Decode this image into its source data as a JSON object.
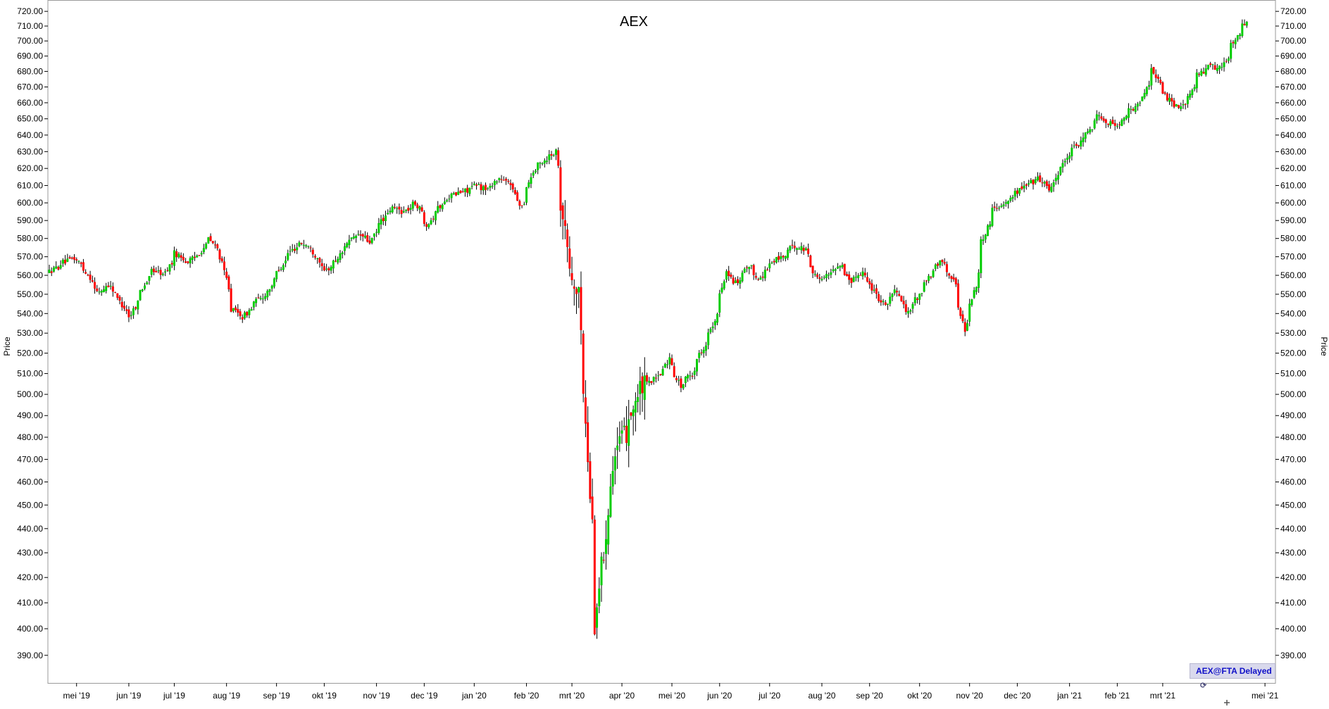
{
  "chart_data": {
    "type": "candlestick",
    "title": "AEX",
    "ylabel_left": "Price",
    "ylabel_right": "Price",
    "ylim": [
      385,
      722
    ],
    "y_scale": "log",
    "y_ticks": [
      "720.00",
      "710.00",
      "700.00",
      "690.00",
      "680.00",
      "670.00",
      "660.00",
      "650.00",
      "640.00",
      "630.00",
      "620.00",
      "610.00",
      "600.00",
      "590.00",
      "580.00",
      "570.00",
      "560.00",
      "550.00",
      "540.00",
      "530.00",
      "520.00",
      "510.00",
      "500.00",
      "490.00",
      "480.00",
      "470.00",
      "460.00",
      "450.00",
      "440.00",
      "430.00",
      "420.00",
      "410.00",
      "400.00",
      "390.00"
    ],
    "x_labels": [
      "mei '19",
      "jun '19",
      "jul '19",
      "aug '19",
      "sep '19",
      "okt '19",
      "nov '19",
      "dec '19",
      "jan '20",
      "feb '20",
      "mrt '20",
      "apr '20",
      "mei '20",
      "jun '20",
      "jul '20",
      "aug '20",
      "sep '20",
      "okt '20",
      "nov '20",
      "dec '20",
      "jan '21",
      "feb '21",
      "mrt '21",
      "mei '21"
    ],
    "colors": {
      "up": "#00cc00",
      "down": "#ff0000",
      "wick": "#000000",
      "axis": "#000000"
    },
    "close_series": [
      {
        "date": "2019-04-15",
        "close": 562
      },
      {
        "date": "2019-04-23",
        "close": 567
      },
      {
        "date": "2019-04-30",
        "close": 569
      },
      {
        "date": "2019-05-07",
        "close": 562
      },
      {
        "date": "2019-05-14",
        "close": 551
      },
      {
        "date": "2019-05-21",
        "close": 555
      },
      {
        "date": "2019-05-28",
        "close": 546
      },
      {
        "date": "2019-06-03",
        "close": 538
      },
      {
        "date": "2019-06-10",
        "close": 552
      },
      {
        "date": "2019-06-17",
        "close": 563
      },
      {
        "date": "2019-06-24",
        "close": 560
      },
      {
        "date": "2019-07-01",
        "close": 572
      },
      {
        "date": "2019-07-08",
        "close": 567
      },
      {
        "date": "2019-07-15",
        "close": 571
      },
      {
        "date": "2019-07-22",
        "close": 580
      },
      {
        "date": "2019-07-29",
        "close": 570
      },
      {
        "date": "2019-08-05",
        "close": 542
      },
      {
        "date": "2019-08-12",
        "close": 538
      },
      {
        "date": "2019-08-19",
        "close": 546
      },
      {
        "date": "2019-08-26",
        "close": 550
      },
      {
        "date": "2019-09-02",
        "close": 562
      },
      {
        "date": "2019-09-09",
        "close": 572
      },
      {
        "date": "2019-09-16",
        "close": 578
      },
      {
        "date": "2019-09-23",
        "close": 574
      },
      {
        "date": "2019-10-01",
        "close": 562
      },
      {
        "date": "2019-10-08",
        "close": 568
      },
      {
        "date": "2019-10-15",
        "close": 578
      },
      {
        "date": "2019-10-22",
        "close": 582
      },
      {
        "date": "2019-10-29",
        "close": 578
      },
      {
        "date": "2019-11-05",
        "close": 590
      },
      {
        "date": "2019-11-12",
        "close": 597
      },
      {
        "date": "2019-11-19",
        "close": 595
      },
      {
        "date": "2019-11-26",
        "close": 600
      },
      {
        "date": "2019-12-03",
        "close": 588
      },
      {
        "date": "2019-12-10",
        "close": 597
      },
      {
        "date": "2019-12-17",
        "close": 604
      },
      {
        "date": "2019-12-24",
        "close": 606
      },
      {
        "date": "2020-01-02",
        "close": 610
      },
      {
        "date": "2020-01-09",
        "close": 608
      },
      {
        "date": "2020-01-16",
        "close": 614
      },
      {
        "date": "2020-01-23",
        "close": 611
      },
      {
        "date": "2020-01-30",
        "close": 598
      },
      {
        "date": "2020-02-06",
        "close": 618
      },
      {
        "date": "2020-02-13",
        "close": 625
      },
      {
        "date": "2020-02-20",
        "close": 630
      },
      {
        "date": "2020-02-24",
        "close": 602
      },
      {
        "date": "2020-02-28",
        "close": 565
      },
      {
        "date": "2020-03-05",
        "close": 548
      },
      {
        "date": "2020-03-09",
        "close": 500
      },
      {
        "date": "2020-03-12",
        "close": 455
      },
      {
        "date": "2020-03-16",
        "close": 402
      },
      {
        "date": "2020-03-19",
        "close": 425
      },
      {
        "date": "2020-03-23",
        "close": 440
      },
      {
        "date": "2020-03-26",
        "close": 470
      },
      {
        "date": "2020-04-02",
        "close": 480
      },
      {
        "date": "2020-04-09",
        "close": 497
      },
      {
        "date": "2020-04-16",
        "close": 505
      },
      {
        "date": "2020-04-23",
        "close": 508
      },
      {
        "date": "2020-04-30",
        "close": 517
      },
      {
        "date": "2020-05-07",
        "close": 504
      },
      {
        "date": "2020-05-14",
        "close": 510
      },
      {
        "date": "2020-05-21",
        "close": 523
      },
      {
        "date": "2020-05-28",
        "close": 535
      },
      {
        "date": "2020-06-04",
        "close": 562
      },
      {
        "date": "2020-06-11",
        "close": 555
      },
      {
        "date": "2020-06-18",
        "close": 565
      },
      {
        "date": "2020-06-25",
        "close": 558
      },
      {
        "date": "2020-07-02",
        "close": 567
      },
      {
        "date": "2020-07-09",
        "close": 570
      },
      {
        "date": "2020-07-16",
        "close": 576
      },
      {
        "date": "2020-07-23",
        "close": 574
      },
      {
        "date": "2020-07-30",
        "close": 558
      },
      {
        "date": "2020-08-06",
        "close": 560
      },
      {
        "date": "2020-08-13",
        "close": 566
      },
      {
        "date": "2020-08-20",
        "close": 557
      },
      {
        "date": "2020-08-27",
        "close": 562
      },
      {
        "date": "2020-09-03",
        "close": 552
      },
      {
        "date": "2020-09-10",
        "close": 545
      },
      {
        "date": "2020-09-17",
        "close": 552
      },
      {
        "date": "2020-09-24",
        "close": 540
      },
      {
        "date": "2020-10-01",
        "close": 550
      },
      {
        "date": "2020-10-08",
        "close": 560
      },
      {
        "date": "2020-10-15",
        "close": 568
      },
      {
        "date": "2020-10-22",
        "close": 558
      },
      {
        "date": "2020-10-29",
        "close": 532
      },
      {
        "date": "2020-11-05",
        "close": 555
      },
      {
        "date": "2020-11-09",
        "close": 578
      },
      {
        "date": "2020-11-16",
        "close": 597
      },
      {
        "date": "2020-11-23",
        "close": 600
      },
      {
        "date": "2020-11-30",
        "close": 606
      },
      {
        "date": "2020-12-07",
        "close": 611
      },
      {
        "date": "2020-12-14",
        "close": 614
      },
      {
        "date": "2020-12-21",
        "close": 608
      },
      {
        "date": "2020-12-28",
        "close": 622
      },
      {
        "date": "2021-01-05",
        "close": 632
      },
      {
        "date": "2021-01-12",
        "close": 640
      },
      {
        "date": "2021-01-19",
        "close": 652
      },
      {
        "date": "2021-01-26",
        "close": 648
      },
      {
        "date": "2021-02-01",
        "close": 645
      },
      {
        "date": "2021-02-08",
        "close": 655
      },
      {
        "date": "2021-02-15",
        "close": 660
      },
      {
        "date": "2021-02-22",
        "close": 682
      },
      {
        "date": "2021-03-01",
        "close": 665
      },
      {
        "date": "2021-03-08",
        "close": 658
      },
      {
        "date": "2021-03-15",
        "close": 660
      },
      {
        "date": "2021-03-22",
        "close": 678
      },
      {
        "date": "2021-03-29",
        "close": 683
      },
      {
        "date": "2021-04-06",
        "close": 682
      },
      {
        "date": "2021-04-13",
        "close": 700
      },
      {
        "date": "2021-04-20",
        "close": 712
      }
    ]
  },
  "badge": {
    "label": "AEX@FTA Delayed",
    "icon": "refresh-icon"
  }
}
